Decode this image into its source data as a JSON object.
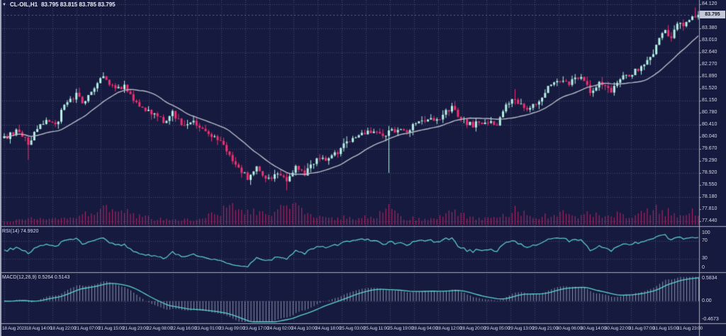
{
  "header": {
    "symbol_timeframe": "CL-OIL,H1",
    "ohlc_text": "83.795 83.815 83.785 83.795",
    "dropdown_icon": "▼"
  },
  "price_axis": {
    "current_price": "83.795",
    "ticks": [
      "84.120",
      "83.380",
      "83.010",
      "82.640",
      "82.270",
      "81.890",
      "81.520",
      "81.150",
      "80.780",
      "80.410",
      "80.040",
      "79.670",
      "79.290",
      "78.920",
      "78.550",
      "78.180",
      "77.810",
      "77.440"
    ]
  },
  "rsi_panel": {
    "label": "RSI(14) 74.9920",
    "scale": [
      "100",
      "70",
      "30",
      "0"
    ],
    "levels": [
      70,
      30
    ]
  },
  "macd_panel": {
    "label": "MACD(12,26,9) 0.5264 0.5143",
    "scale": [
      "0.5834",
      "0.00",
      "-0.4673"
    ]
  },
  "colors": {
    "background": "#151a3e",
    "bull": "#b7f2e6",
    "bear": "#f0306f",
    "ma_line": "#b9bcc9",
    "grid": "#454b72",
    "indicator_line": "#5fd4cf",
    "macd_histogram": "#8d93b0",
    "volume": "#a62562",
    "axis_text": "#d6daea",
    "panel_border": "#a8adc0",
    "price_tag_bg": "#c4c8d6",
    "price_tag_text": "#10142e",
    "bid_line": "#aab0c8"
  },
  "chart_data": {
    "type": "candlestick",
    "symbol": "CL-OIL",
    "timeframe": "H1",
    "title": "CL-OIL,H1 83.795 83.815 83.785 83.795",
    "candle_count": 232,
    "price_range": [
      77.3,
      84.25
    ],
    "current": {
      "open": 83.795,
      "high": 83.815,
      "low": 83.785,
      "close": 83.795,
      "bid": 83.795
    },
    "price_path": [
      [
        0,
        80.0
      ],
      [
        4,
        80.18
      ],
      [
        8,
        79.85
      ],
      [
        11,
        80.3
      ],
      [
        14,
        80.55
      ],
      [
        17,
        80.35
      ],
      [
        20,
        81.0
      ],
      [
        24,
        81.35
      ],
      [
        26,
        81.05
      ],
      [
        29,
        81.45
      ],
      [
        32,
        81.8
      ],
      [
        34,
        81.85
      ],
      [
        37,
        81.45
      ],
      [
        40,
        81.6
      ],
      [
        43,
        81.1
      ],
      [
        47,
        80.85
      ],
      [
        50,
        80.7
      ],
      [
        53,
        80.5
      ],
      [
        56,
        80.75
      ],
      [
        59,
        80.4
      ],
      [
        63,
        80.45
      ],
      [
        67,
        80.15
      ],
      [
        71,
        79.95
      ],
      [
        74,
        79.6
      ],
      [
        78,
        79.05
      ],
      [
        81,
        78.75
      ],
      [
        84,
        79.05
      ],
      [
        88,
        78.7
      ],
      [
        91,
        78.95
      ],
      [
        94,
        78.6
      ],
      [
        97,
        79.05
      ],
      [
        100,
        78.85
      ],
      [
        104,
        79.4
      ],
      [
        108,
        79.3
      ],
      [
        112,
        79.65
      ],
      [
        115,
        79.95
      ],
      [
        119,
        80.1
      ],
      [
        122,
        80.2
      ],
      [
        126,
        80.05
      ],
      [
        129,
        80.25
      ],
      [
        133,
        80.2
      ],
      [
        136,
        80.35
      ],
      [
        141,
        80.55
      ],
      [
        145,
        80.6
      ],
      [
        149,
        80.95
      ],
      [
        152,
        80.55
      ],
      [
        156,
        80.4
      ],
      [
        160,
        80.5
      ],
      [
        164,
        80.45
      ],
      [
        167,
        80.95
      ],
      [
        170,
        81.2
      ],
      [
        174,
        80.8
      ],
      [
        177,
        81.05
      ],
      [
        181,
        81.55
      ],
      [
        184,
        81.75
      ],
      [
        188,
        81.7
      ],
      [
        192,
        81.85
      ],
      [
        195,
        81.45
      ],
      [
        198,
        81.7
      ],
      [
        202,
        81.45
      ],
      [
        205,
        81.85
      ],
      [
        209,
        82.0
      ],
      [
        212,
        82.15
      ],
      [
        216,
        82.65
      ],
      [
        219,
        83.3
      ],
      [
        222,
        83.15
      ],
      [
        224,
        83.45
      ],
      [
        227,
        83.55
      ],
      [
        229,
        83.75
      ],
      [
        231,
        83.795
      ]
    ],
    "wick_events": [
      {
        "i": 8,
        "low": 79.32
      },
      {
        "i": 33,
        "high": 82.02
      },
      {
        "i": 94,
        "low": 78.38
      },
      {
        "i": 128,
        "low": 78.92
      },
      {
        "i": 149,
        "high": 81.08
      },
      {
        "i": 170,
        "high": 81.5
      },
      {
        "i": 230,
        "high": 84.02
      }
    ],
    "volume_path": [
      [
        0,
        0.18
      ],
      [
        8,
        0.32
      ],
      [
        16,
        0.22
      ],
      [
        24,
        0.45
      ],
      [
        30,
        0.6
      ],
      [
        36,
        0.85
      ],
      [
        42,
        0.5
      ],
      [
        50,
        0.28
      ],
      [
        58,
        0.2
      ],
      [
        66,
        0.3
      ],
      [
        72,
        0.55
      ],
      [
        76,
        0.95
      ],
      [
        82,
        0.6
      ],
      [
        88,
        0.42
      ],
      [
        94,
        1.0
      ],
      [
        100,
        0.5
      ],
      [
        106,
        0.3
      ],
      [
        112,
        0.35
      ],
      [
        118,
        0.3
      ],
      [
        124,
        0.4
      ],
      [
        127,
        0.9
      ],
      [
        132,
        0.35
      ],
      [
        138,
        0.25
      ],
      [
        144,
        0.3
      ],
      [
        149,
        0.6
      ],
      [
        154,
        0.35
      ],
      [
        160,
        0.25
      ],
      [
        166,
        0.4
      ],
      [
        170,
        0.65
      ],
      [
        175,
        0.45
      ],
      [
        180,
        0.4
      ],
      [
        186,
        0.55
      ],
      [
        192,
        0.45
      ],
      [
        198,
        0.5
      ],
      [
        204,
        0.45
      ],
      [
        210,
        0.5
      ],
      [
        214,
        0.6
      ],
      [
        218,
        0.7
      ],
      [
        222,
        0.55
      ],
      [
        226,
        0.5
      ],
      [
        229,
        0.65
      ],
      [
        231,
        0.45
      ]
    ],
    "ma_overlay": {
      "type": "SMA",
      "period": 20
    },
    "rsi": {
      "period": 14,
      "current": 74.992,
      "levels": [
        70,
        30
      ],
      "axis_range": [
        0,
        100
      ]
    },
    "macd": {
      "fast": 12,
      "slow": 26,
      "signal": 9,
      "macd_current": 0.5264,
      "signal_current": 0.5143,
      "axis_range": [
        -0.4673,
        0.5834
      ]
    },
    "x_labels": [
      "18 Aug 2023",
      "18 Aug 14:00",
      "18 Aug 22:00",
      "21 Aug 07:00",
      "21 Aug 15:00",
      "21 Aug 23:00",
      "22 Aug 08:00",
      "22 Aug 16:00",
      "23 Aug 01:00",
      "23 Aug 09:00",
      "23 Aug 17:00",
      "24 Aug 02:00",
      "24 Aug 10:00",
      "24 Aug 18:00",
      "25 Aug 03:00",
      "25 Aug 11:00",
      "25 Aug 19:00",
      "28 Aug 04:00",
      "28 Aug 12:00",
      "28 Aug 20:00",
      "29 Aug 05:00",
      "29 Aug 13:00",
      "29 Aug 21:00",
      "30 Aug 06:00",
      "30 Aug 14:00",
      "30 Aug 22:00",
      "31 Aug 07:00",
      "31 Aug 15:00",
      "31 Aug 23:00"
    ]
  }
}
